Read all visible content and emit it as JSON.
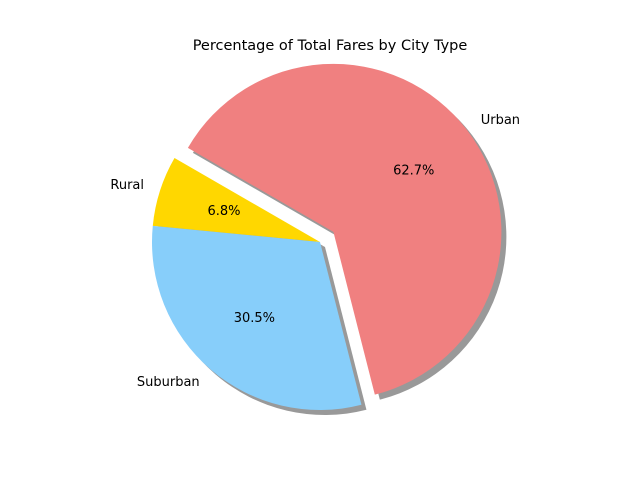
{
  "chart_data": {
    "type": "pie",
    "title": "Percentage of Total Fares by City Type",
    "slices": [
      {
        "label": "Rural",
        "value": 6.8,
        "pct_label": "6.8%",
        "color": "#FFD700",
        "explode": false
      },
      {
        "label": "Suburban",
        "value": 30.5,
        "pct_label": "30.5%",
        "color": "#87CEFA",
        "explode": false
      },
      {
        "label": "Urban",
        "value": 62.7,
        "pct_label": "62.7%",
        "color": "#F08080",
        "explode": true
      }
    ],
    "shadow": true,
    "start_angle_deg": 150,
    "direction": "counterclockwise"
  }
}
